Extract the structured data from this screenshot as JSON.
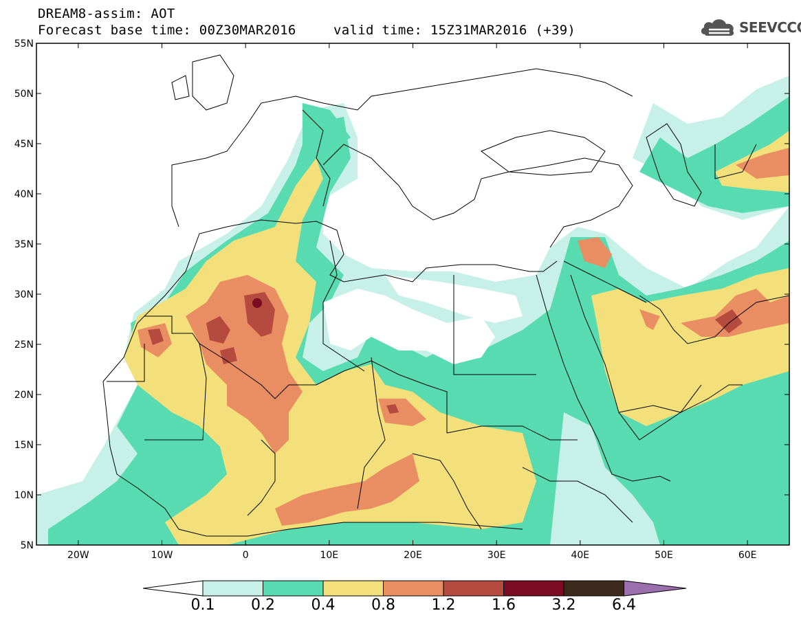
{
  "header": {
    "line1": "DREAM8-assim: AOT",
    "line2_base": "Forecast base time: 00Z30MAR2016",
    "line2_valid": "valid time: 15Z31MAR2016 (+39)",
    "logo_text": "SEEVCCC",
    "logo_icon": "cloud-logo-icon"
  },
  "axes": {
    "lat_labels": [
      "55N",
      "50N",
      "45N",
      "40N",
      "35N",
      "30N",
      "25N",
      "20N",
      "15N",
      "10N",
      "5N"
    ],
    "lon_labels": [
      "20W",
      "10W",
      "0",
      "10E",
      "20E",
      "30E",
      "40E",
      "50E",
      "60E"
    ]
  },
  "colorbar": {
    "labels": [
      "0.1",
      "0.2",
      "0.4",
      "0.8",
      "1.2",
      "1.6",
      "3.2",
      "6.4"
    ],
    "colors": [
      "#ffffff",
      "#c7f0e8",
      "#58dbb0",
      "#f4e07a",
      "#e98d62",
      "#b54a3f",
      "#7b0a22",
      "#3d2a1c",
      "#9b6fae"
    ]
  },
  "map_data": {
    "variable": "AOT",
    "lat_range": [
      5,
      55
    ],
    "lon_range": [
      -25,
      65
    ],
    "level_colors": {
      "0.1": "#c7f0e8",
      "0.2": "#58dbb0",
      "0.4": "#f4e07a",
      "0.8": "#e98d62",
      "1.2": "#b54a3f",
      "1.6": "#7b0a22"
    }
  }
}
